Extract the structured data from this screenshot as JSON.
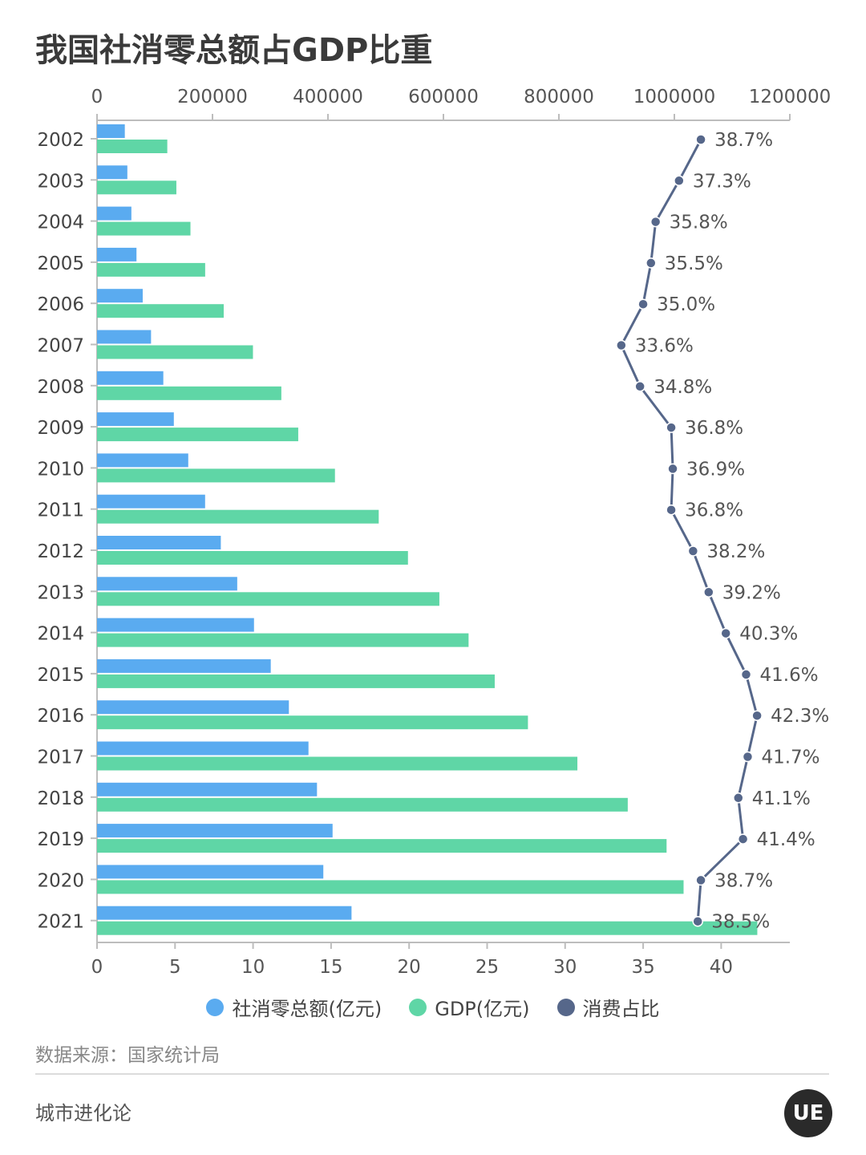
{
  "title": "我国社消零总额占GDP比重",
  "source": "数据来源：国家统计局",
  "brand": "城市进化论",
  "logo_text": "UE",
  "legend": [
    {
      "label": "社消零总额(亿元)",
      "color": "#5aabf0"
    },
    {
      "label": "GDP(亿元)",
      "color": "#5fd6a6"
    },
    {
      "label": "消费占比",
      "color": "#56678a"
    }
  ],
  "chart_data": {
    "type": "bar",
    "orientation": "horizontal",
    "categories": [
      "2002",
      "2003",
      "2004",
      "2005",
      "2006",
      "2007",
      "2008",
      "2009",
      "2010",
      "2011",
      "2012",
      "2013",
      "2014",
      "2015",
      "2016",
      "2017",
      "2018",
      "2019",
      "2020",
      "2021"
    ],
    "series": [
      {
        "name": "社消零总额(亿元)",
        "type": "bar",
        "axis": "top",
        "color": "#5aabf0",
        "values": [
          48136,
          52516,
          59501,
          68353,
          79145,
          93572,
          114830,
          133048,
          158008,
          187206,
          214433,
          242843,
          271896,
          300931,
          332316,
          366262,
          380987,
          408017,
          391981,
          440823
        ]
      },
      {
        "name": "GDP(亿元)",
        "type": "bar",
        "axis": "top",
        "color": "#5fd6a6",
        "values": [
          121717,
          137422,
          161840,
          187319,
          219439,
          270092,
          319245,
          348518,
          412119,
          487940,
          538580,
          592963,
          643563,
          688858,
          746395,
          832036,
          919281,
          986515,
          1015986,
          1143670
        ]
      },
      {
        "name": "消费占比",
        "type": "line",
        "axis": "bottom",
        "color": "#56678a",
        "values": [
          38.7,
          37.3,
          35.8,
          35.5,
          35.0,
          33.6,
          34.8,
          36.8,
          36.9,
          36.8,
          38.2,
          39.2,
          40.3,
          41.6,
          42.3,
          41.7,
          41.1,
          41.4,
          38.7,
          38.5
        ],
        "labels": [
          "38.7%",
          "37.3%",
          "35.8%",
          "35.5%",
          "35.0%",
          "33.6%",
          "34.8%",
          "36.8%",
          "36.9%",
          "36.8%",
          "38.2%",
          "39.2%",
          "40.3%",
          "41.6%",
          "42.3%",
          "41.7%",
          "41.1%",
          "41.4%",
          "38.7%",
          "38.5%"
        ]
      }
    ],
    "top_axis": {
      "range": [
        0,
        1200000
      ],
      "ticks": [
        0,
        200000,
        400000,
        600000,
        800000,
        1000000,
        1200000
      ]
    },
    "bottom_axis": {
      "range": [
        0,
        44.4
      ],
      "ticks": [
        0,
        5,
        10,
        15,
        20,
        25,
        30,
        35,
        40
      ]
    },
    "grid": false,
    "legend_position": "bottom"
  }
}
